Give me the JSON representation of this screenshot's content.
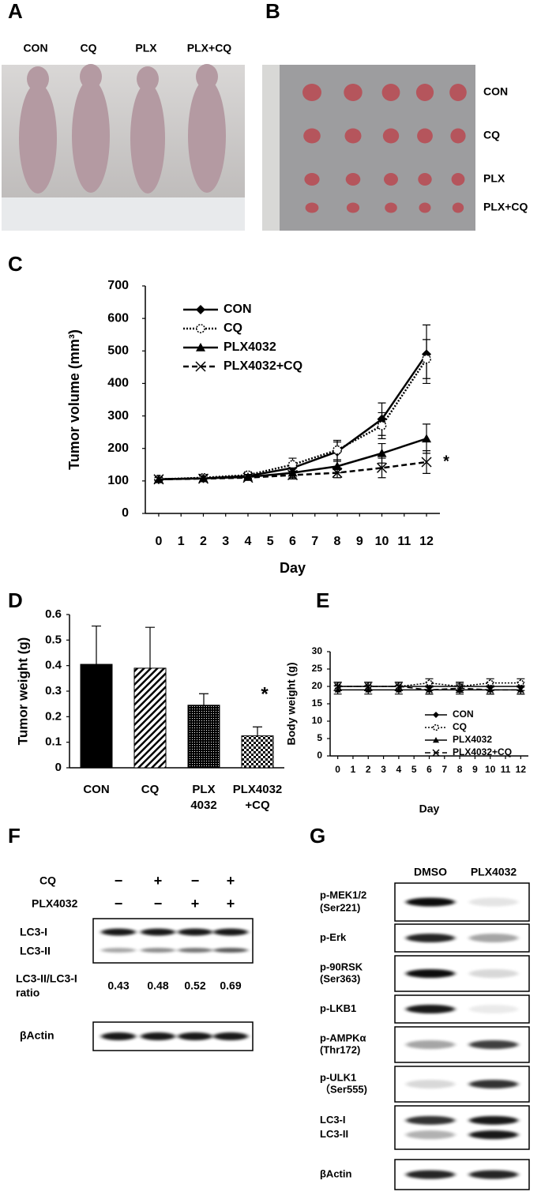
{
  "panel_a": {
    "label": "A",
    "groups": [
      "CON",
      "CQ",
      "PLX",
      "PLX+CQ"
    ]
  },
  "panel_b": {
    "label": "B",
    "groups": [
      "CON",
      "CQ",
      "PLX",
      "PLX+CQ"
    ]
  },
  "chart_data": [
    {
      "type": "line",
      "panel": "C",
      "xlabel": "Day",
      "ylabel": "Tumor volume (mm³)",
      "annotation": "*",
      "x": [
        0,
        2,
        4,
        6,
        8,
        10,
        12
      ],
      "xlim": [
        -0.6,
        12.6
      ],
      "xticks": [
        0,
        1,
        2,
        3,
        4,
        5,
        6,
        7,
        8,
        9,
        10,
        11,
        12
      ],
      "ylim": [
        0,
        700
      ],
      "yticks": [
        0,
        100,
        200,
        300,
        400,
        500,
        600,
        700
      ],
      "grid": false,
      "legend": "upper left",
      "series": [
        {
          "name": "CON",
          "color": "#000000",
          "style": "solid",
          "marker": "diamond",
          "values": [
            105,
            108,
            115,
            140,
            190,
            290,
            490
          ],
          "errors": [
            6,
            10,
            10,
            15,
            30,
            50,
            90
          ]
        },
        {
          "name": "CQ",
          "color": "#000000",
          "style": "dotted",
          "marker": "circle-open",
          "values": [
            105,
            110,
            118,
            150,
            195,
            270,
            475
          ],
          "errors": [
            6,
            10,
            10,
            20,
            30,
            40,
            60
          ]
        },
        {
          "name": "PLX4032",
          "color": "#000000",
          "style": "solid",
          "marker": "triangle",
          "values": [
            105,
            108,
            112,
            125,
            145,
            185,
            230
          ],
          "errors": [
            6,
            8,
            8,
            15,
            20,
            30,
            45
          ]
        },
        {
          "name": "PLX4032+CQ",
          "color": "#000000",
          "style": "dashed",
          "marker": "x",
          "values": [
            105,
            107,
            110,
            118,
            125,
            140,
            158
          ],
          "errors": [
            6,
            8,
            8,
            12,
            15,
            30,
            35
          ]
        }
      ]
    },
    {
      "type": "bar",
      "panel": "D",
      "ylabel": "Tumor weight (g)",
      "annotation": "*",
      "categories": [
        [
          "CON"
        ],
        [
          "CQ"
        ],
        [
          "PLX",
          "4032"
        ],
        [
          "PLX4032",
          "+CQ"
        ]
      ],
      "values": [
        0.405,
        0.39,
        0.245,
        0.125
      ],
      "errors": [
        0.15,
        0.16,
        0.045,
        0.035
      ],
      "patterns": [
        "solid",
        "hatch",
        "dots",
        "checker"
      ],
      "color": "#000000",
      "ylim": [
        0,
        0.6
      ],
      "yticks": [
        0,
        0.1,
        0.2,
        0.3,
        0.4,
        0.5,
        0.6
      ],
      "grid": false
    },
    {
      "type": "line",
      "panel": "E",
      "xlabel": "Day",
      "ylabel": "Body weight (g)",
      "x": [
        0,
        2,
        4,
        6,
        8,
        10,
        12
      ],
      "xlim": [
        -0.5,
        12.5
      ],
      "xticks": [
        0,
        1,
        2,
        3,
        4,
        5,
        6,
        7,
        8,
        9,
        10,
        11,
        12
      ],
      "ylim": [
        0,
        30
      ],
      "yticks": [
        0,
        5,
        10,
        15,
        20,
        25,
        30
      ],
      "grid": false,
      "legend": "lower right",
      "series": [
        {
          "name": "CON",
          "color": "#000000",
          "style": "solid",
          "marker": "diamond",
          "values": [
            20,
            20,
            20,
            20,
            20,
            20,
            20
          ],
          "errors": [
            1.2,
            1.2,
            1.2,
            1.2,
            1.2,
            1.2,
            1.2
          ]
        },
        {
          "name": "CQ",
          "color": "#000000",
          "style": "dotted",
          "marker": "circle-open",
          "values": [
            20,
            20,
            20,
            21,
            20,
            21,
            21
          ],
          "errors": [
            1.2,
            1.2,
            1.2,
            1.2,
            1.2,
            1.2,
            1.2
          ]
        },
        {
          "name": "PLX4032",
          "color": "#000000",
          "style": "solid",
          "marker": "triangle",
          "values": [
            19,
            19,
            19,
            19,
            19,
            19,
            19
          ],
          "errors": [
            1.2,
            1.2,
            1.2,
            1.2,
            1.2,
            1.2,
            1.2
          ]
        },
        {
          "name": "PLX4032+CQ",
          "color": "#000000",
          "style": "dashed",
          "marker": "x",
          "values": [
            20,
            20,
            20,
            19,
            19.5,
            19,
            19
          ],
          "errors": [
            1.2,
            1.2,
            1.2,
            1.2,
            1.2,
            1.2,
            1.2
          ]
        }
      ]
    }
  ],
  "panel_f": {
    "label": "F",
    "treatments": [
      {
        "name": "CQ",
        "signs": [
          "−",
          "+",
          "−",
          "+"
        ]
      },
      {
        "name": "PLX4032",
        "signs": [
          "−",
          "−",
          "+",
          "+"
        ]
      }
    ],
    "bands": [
      "LC3-I",
      "LC3-II"
    ],
    "ratio_label": [
      "LC3-II/LC3-I",
      "ratio"
    ],
    "ratios": [
      0.43,
      0.48,
      0.52,
      0.69
    ],
    "loading": "βActin"
  },
  "panel_g": {
    "label": "G",
    "lanes": [
      "DMSO",
      "PLX4032"
    ],
    "rows": [
      [
        "p-MEK1/2",
        "(Ser221)"
      ],
      [
        "p-Erk"
      ],
      [
        "p-90RSK",
        "(Ser363)"
      ],
      [
        "p-LKB1"
      ],
      [
        "p-AMPKα",
        "(Thr172)"
      ],
      [
        "p-ULK1",
        "（Ser555)"
      ],
      [
        "LC3-I",
        "LC3-II"
      ],
      [
        "βActin"
      ]
    ]
  }
}
